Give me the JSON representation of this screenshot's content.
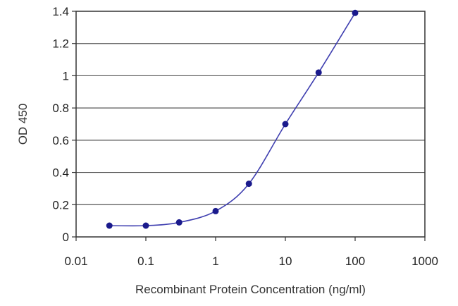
{
  "chart_data": {
    "type": "line",
    "title": "",
    "xlabel": "Recombinant Protein Concentration (ng/ml)",
    "ylabel": "OD 450",
    "x_scale": "log",
    "xlim": [
      0.01,
      1000
    ],
    "ylim": [
      0,
      1.4
    ],
    "x_ticks": [
      "0.01",
      "0.1",
      "1",
      "10",
      "100",
      "1000"
    ],
    "y_ticks": [
      "0",
      "0.2",
      "0.4",
      "0.6",
      "0.8",
      "1",
      "1.2",
      "1.4"
    ],
    "grid": "horizontal",
    "legend": "none",
    "series": [
      {
        "x": [
          0.03,
          0.1,
          0.3,
          1,
          3,
          10,
          30,
          100
        ],
        "y": [
          0.07,
          0.07,
          0.09,
          0.16,
          0.33,
          0.7,
          1.02,
          1.39
        ]
      }
    ],
    "colors": {
      "line": "#3f3fb0",
      "marker": "#1a1a8c",
      "grid": "#555555",
      "frame": "#333333"
    }
  }
}
